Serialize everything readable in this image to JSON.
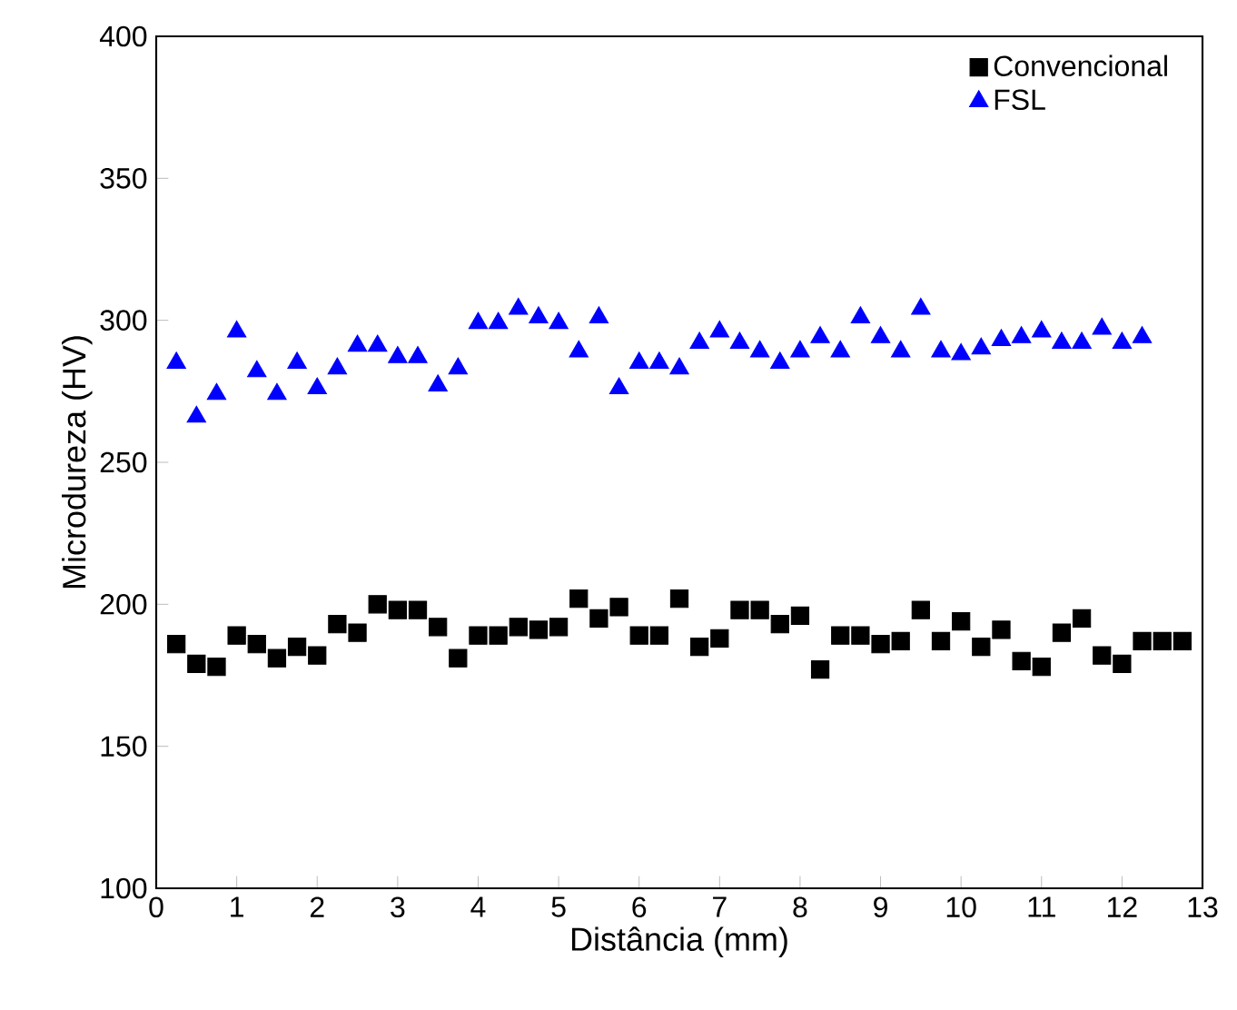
{
  "chart_data": {
    "type": "scatter",
    "xlabel": "Distância (mm)",
    "ylabel": "Microdureza (HV)",
    "xlim": [
      0,
      13
    ],
    "xticks": [
      0,
      1,
      2,
      3,
      4,
      5,
      6,
      7,
      8,
      9,
      10,
      11,
      12,
      13
    ],
    "ylim": [
      100,
      400
    ],
    "yticks": [
      100,
      150,
      200,
      250,
      300,
      350,
      400
    ],
    "legend": "top right",
    "series": [
      {
        "name": "Convencional",
        "color": "#000000",
        "marker": "square",
        "x": [
          0.25,
          0.5,
          0.75,
          1,
          1.25,
          1.5,
          1.75,
          2,
          2.25,
          2.5,
          2.75,
          3,
          3.25,
          3.5,
          3.75,
          4,
          4.25,
          4.5,
          4.75,
          5,
          5.25,
          5.5,
          5.75,
          6,
          6.25,
          6.5,
          6.75,
          7,
          7.25,
          7.5,
          7.75,
          8,
          8.25,
          8.5,
          8.75,
          9,
          9.25,
          9.5,
          9.75,
          10,
          10.25,
          10.5,
          10.75,
          11,
          11.25,
          11.5,
          11.75,
          12,
          12.25,
          12.5,
          12.75
        ],
        "values": [
          186,
          179,
          178,
          189,
          186,
          181,
          185,
          182,
          193,
          190,
          200,
          198,
          198,
          192,
          181,
          189,
          189,
          192,
          191,
          192,
          202,
          195,
          199,
          189,
          189,
          202,
          185,
          188,
          198,
          198,
          193,
          196,
          177,
          189,
          189,
          186,
          187,
          198,
          187,
          194,
          185,
          191,
          180,
          178,
          190,
          195,
          182,
          179,
          187,
          187,
          187
        ]
      },
      {
        "name": "FSL",
        "color": "#0000ff",
        "marker": "triangle",
        "x": [
          0.25,
          0.5,
          0.75,
          1,
          1.25,
          1.5,
          1.75,
          2,
          2.25,
          2.5,
          2.75,
          3,
          3.25,
          3.5,
          3.75,
          4,
          4.25,
          4.5,
          4.75,
          5,
          5.25,
          5.5,
          5.75,
          6,
          6.25,
          6.5,
          6.75,
          7,
          7.25,
          7.5,
          7.75,
          8,
          8.25,
          8.5,
          8.75,
          9,
          9.25,
          9.5,
          9.75,
          10,
          10.25,
          10.5,
          10.75,
          11,
          11.25,
          11.5,
          11.75,
          12,
          12.25
        ],
        "values": [
          285,
          266,
          274,
          296,
          282,
          274,
          285,
          276,
          283,
          291,
          291,
          287,
          287,
          277,
          283,
          299,
          299,
          304,
          301,
          299,
          289,
          301,
          276,
          285,
          285,
          283,
          292,
          296,
          292,
          289,
          285,
          289,
          294,
          289,
          301,
          294,
          289,
          304,
          289,
          288,
          290,
          293,
          294,
          296,
          292,
          292,
          297,
          292,
          294
        ]
      }
    ]
  }
}
